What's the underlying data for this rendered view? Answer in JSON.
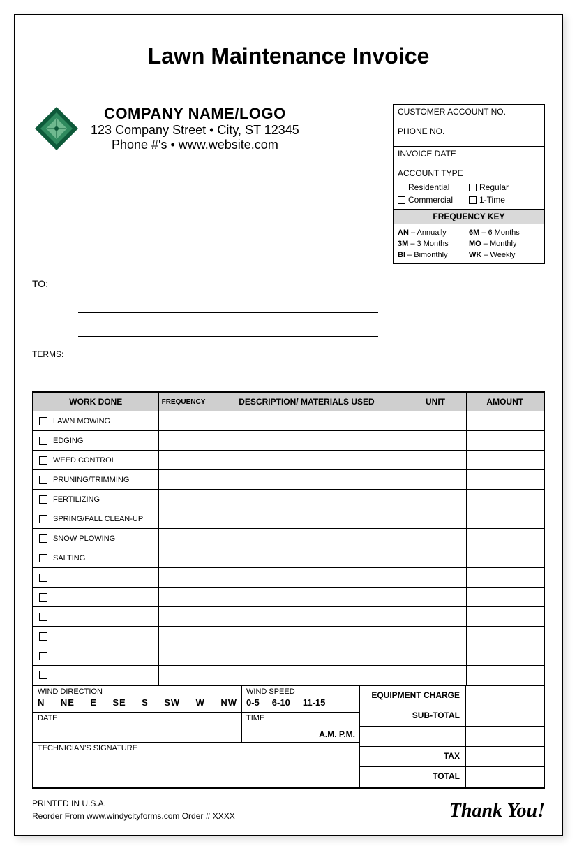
{
  "title": "Lawn Maintenance Invoice",
  "company": {
    "name": "COMPANY NAME/LOGO",
    "address": "123 Company Street • City, ST 12345",
    "contact": "Phone #'s • www.website.com",
    "logo_colors": {
      "dark": "#0e5a3a",
      "mid": "#2f8a5e",
      "light": "#6fb98f"
    }
  },
  "info_box": {
    "customer_account": "CUSTOMER ACCOUNT NO.",
    "phone": "PHONE NO.",
    "invoice_date": "INVOICE DATE",
    "account_type_label": "ACCOUNT TYPE",
    "account_types": [
      "Residential",
      "Regular",
      "Commercial",
      "1-Time"
    ],
    "freq_key_header": "FREQUENCY KEY",
    "freq_keys": [
      {
        "code": "AN",
        "label": "Annually"
      },
      {
        "code": "6M",
        "label": "6 Months"
      },
      {
        "code": "3M",
        "label": "3 Months"
      },
      {
        "code": "MO",
        "label": "Monthly"
      },
      {
        "code": "BI",
        "label": "Bimonthly"
      },
      {
        "code": "WK",
        "label": "Weekly"
      }
    ]
  },
  "to_label": "TO:",
  "terms_label": "TERMS:",
  "table": {
    "headers": {
      "work": "WORK DONE",
      "freq": "FREQUENCY",
      "desc": "DESCRIPTION/ MATERIALS USED",
      "unit": "UNIT",
      "amount": "AMOUNT"
    },
    "work_items": [
      "LAWN MOWING",
      "EDGING",
      "WEED CONTROL",
      "PRUNING/TRIMMING",
      "FERTILIZING",
      "SPRING/FALL CLEAN-UP",
      "SNOW PLOWING",
      "SALTING",
      "",
      "",
      "",
      "",
      "",
      ""
    ]
  },
  "lower": {
    "wind_dir_label": "WIND DIRECTION",
    "wind_dirs": [
      "N",
      "NE",
      "E",
      "SE",
      "S",
      "SW",
      "W",
      "NW"
    ],
    "wind_speed_label": "WIND SPEED",
    "wind_speeds": [
      "0-5",
      "6-10",
      "11-15"
    ],
    "date_label": "DATE",
    "time_label": "TIME",
    "ampm": "A.M.  P.M.",
    "sig_label": "TECHNICIAN'S SIGNATURE",
    "totals": [
      "EQUIPMENT CHARGE",
      "SUB-TOTAL",
      "",
      "TAX",
      "TOTAL"
    ]
  },
  "footer": {
    "line1": "PRINTED IN U.S.A.",
    "line2": "Reorder From  www.windycityforms.com  Order # XXXX",
    "thanks": "Thank You!"
  }
}
